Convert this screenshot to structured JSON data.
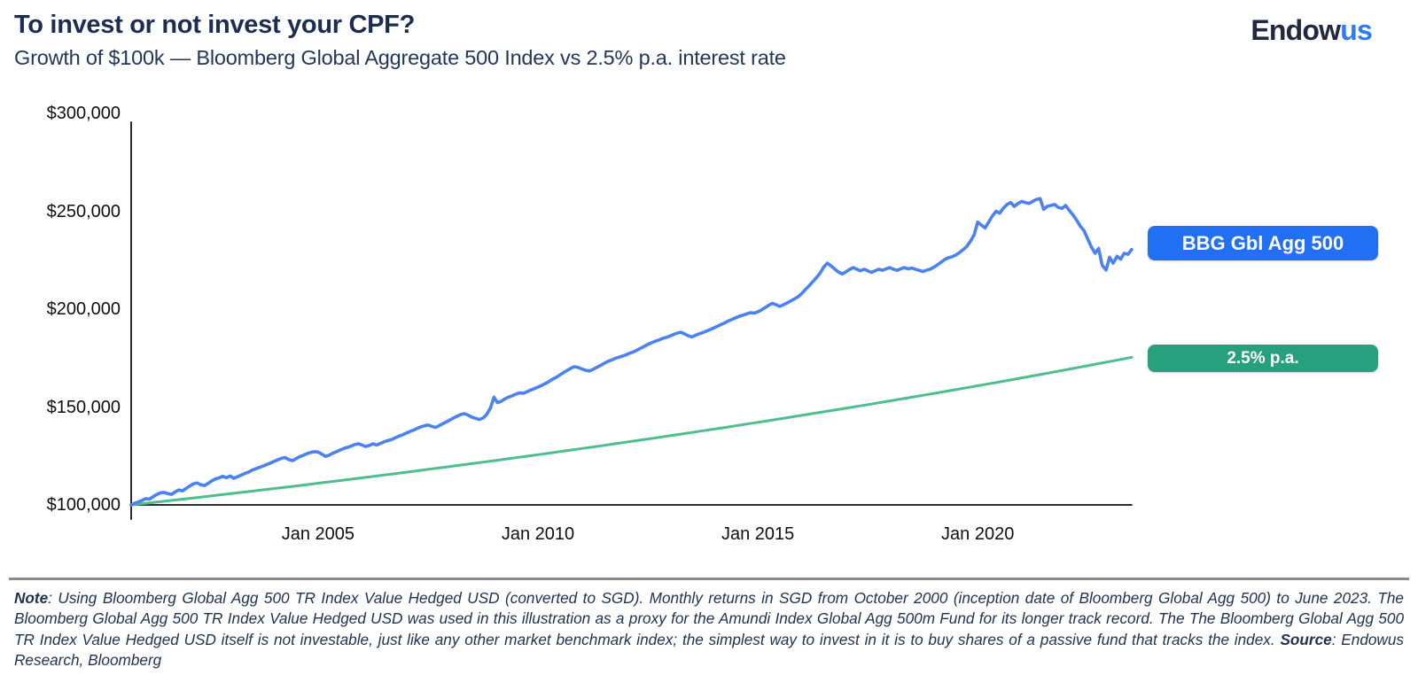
{
  "header": {
    "title": "To invest or not invest your CPF?",
    "subtitle": "Growth of $100k — Bloomberg Global Aggregate 500 Index vs 2.5% p.a. interest rate",
    "logo": {
      "part1": "Endow",
      "part2": "us"
    }
  },
  "chart_data": {
    "type": "line",
    "title": "Growth of $100k — Bloomberg Global Aggregate 500 Index vs 2.5% p.a. interest rate",
    "grid": false,
    "legend_position": "right-of-line-ends",
    "x_axis": {
      "range": [
        2000.75,
        2023.5
      ],
      "start_label": "October 2000",
      "end_label": "June 2023",
      "ticks": [
        {
          "label": "Jan 2005",
          "t": 2005.0
        },
        {
          "label": "Jan 2010",
          "t": 2010.0
        },
        {
          "label": "Jan 2015",
          "t": 2015.0
        },
        {
          "label": "Jan 2020",
          "t": 2020.0
        }
      ]
    },
    "y_axis": {
      "range": [
        100000,
        300000
      ],
      "unit": "SGD",
      "ticks": [
        {
          "label": "$100,000",
          "value": 100000
        },
        {
          "label": "$150,000",
          "value": 150000
        },
        {
          "label": "$200,000",
          "value": 200000
        },
        {
          "label": "$250,000",
          "value": 250000
        },
        {
          "label": "$300,000",
          "value": 300000
        }
      ]
    },
    "series": [
      {
        "name": "BBG Gbl Agg 500",
        "color": "#4a83f1",
        "badge_color": "#2170f3",
        "value_unit": "thousands",
        "points": [
          [
            2000.75,
            100
          ],
          [
            2000.83,
            100.8
          ],
          [
            2000.92,
            101.6
          ],
          [
            2001,
            102.3
          ],
          [
            2001.08,
            103.2
          ],
          [
            2001.17,
            103
          ],
          [
            2001.25,
            104.2
          ],
          [
            2001.33,
            105.3
          ],
          [
            2001.42,
            106.2
          ],
          [
            2001.5,
            106.4
          ],
          [
            2001.58,
            105.8
          ],
          [
            2001.67,
            105.4
          ],
          [
            2001.75,
            106.6
          ],
          [
            2001.83,
            107.6
          ],
          [
            2001.92,
            107.2
          ],
          [
            2002,
            108.4
          ],
          [
            2002.08,
            109.6
          ],
          [
            2002.17,
            110.8
          ],
          [
            2002.25,
            111.2
          ],
          [
            2002.33,
            110.3
          ],
          [
            2002.42,
            109.9
          ],
          [
            2002.5,
            111
          ],
          [
            2002.58,
            112.2
          ],
          [
            2002.67,
            113.3
          ],
          [
            2002.75,
            113.8
          ],
          [
            2002.83,
            114.6
          ],
          [
            2002.92,
            113.9
          ],
          [
            2003,
            114.8
          ],
          [
            2003.08,
            113.6
          ],
          [
            2003.17,
            114.4
          ],
          [
            2003.25,
            115.2
          ],
          [
            2003.33,
            116
          ],
          [
            2003.42,
            116.8
          ],
          [
            2003.5,
            117.8
          ],
          [
            2003.58,
            118.4
          ],
          [
            2003.67,
            119.2
          ],
          [
            2003.75,
            119.8
          ],
          [
            2003.83,
            120.6
          ],
          [
            2003.92,
            121.4
          ],
          [
            2004,
            122.2
          ],
          [
            2004.08,
            123
          ],
          [
            2004.17,
            123.8
          ],
          [
            2004.25,
            124.2
          ],
          [
            2004.33,
            123.2
          ],
          [
            2004.42,
            122.6
          ],
          [
            2004.5,
            123.6
          ],
          [
            2004.58,
            124.6
          ],
          [
            2004.67,
            125.4
          ],
          [
            2004.75,
            126.2
          ],
          [
            2004.83,
            126.8
          ],
          [
            2004.92,
            127.2
          ],
          [
            2005,
            127
          ],
          [
            2005.08,
            126
          ],
          [
            2005.17,
            124.8
          ],
          [
            2005.25,
            125.4
          ],
          [
            2005.33,
            126.4
          ],
          [
            2005.42,
            127.2
          ],
          [
            2005.5,
            128
          ],
          [
            2005.58,
            128.8
          ],
          [
            2005.67,
            129.4
          ],
          [
            2005.75,
            130
          ],
          [
            2005.83,
            130.8
          ],
          [
            2005.92,
            131.2
          ],
          [
            2006,
            130.6
          ],
          [
            2006.08,
            129.8
          ],
          [
            2006.17,
            130.4
          ],
          [
            2006.25,
            131.2
          ],
          [
            2006.33,
            130.6
          ],
          [
            2006.42,
            131.4
          ],
          [
            2006.5,
            132.2
          ],
          [
            2006.58,
            132.8
          ],
          [
            2006.67,
            133.4
          ],
          [
            2006.75,
            134.2
          ],
          [
            2006.83,
            135
          ],
          [
            2006.92,
            135.8
          ],
          [
            2007,
            136.6
          ],
          [
            2007.08,
            137.4
          ],
          [
            2007.17,
            138.2
          ],
          [
            2007.25,
            139
          ],
          [
            2007.33,
            139.8
          ],
          [
            2007.42,
            140.4
          ],
          [
            2007.5,
            140.8
          ],
          [
            2007.58,
            140.2
          ],
          [
            2007.67,
            139.6
          ],
          [
            2007.75,
            140.4
          ],
          [
            2007.83,
            141.4
          ],
          [
            2007.92,
            142.4
          ],
          [
            2008,
            143.4
          ],
          [
            2008.08,
            144.4
          ],
          [
            2008.17,
            145.4
          ],
          [
            2008.25,
            146.2
          ],
          [
            2008.33,
            146.6
          ],
          [
            2008.42,
            145.8
          ],
          [
            2008.5,
            144.8
          ],
          [
            2008.58,
            144.2
          ],
          [
            2008.67,
            143.6
          ],
          [
            2008.75,
            144.4
          ],
          [
            2008.83,
            146
          ],
          [
            2008.92,
            149.5
          ],
          [
            2009,
            155
          ],
          [
            2009.08,
            152.2
          ],
          [
            2009.17,
            153
          ],
          [
            2009.25,
            154.2
          ],
          [
            2009.33,
            155
          ],
          [
            2009.42,
            155.8
          ],
          [
            2009.5,
            156.6
          ],
          [
            2009.58,
            157.2
          ],
          [
            2009.67,
            157
          ],
          [
            2009.75,
            157.8
          ],
          [
            2009.83,
            158.6
          ],
          [
            2009.92,
            159.4
          ],
          [
            2010,
            160.2
          ],
          [
            2010.08,
            161
          ],
          [
            2010.17,
            162
          ],
          [
            2010.25,
            163
          ],
          [
            2010.33,
            164.2
          ],
          [
            2010.42,
            165.2
          ],
          [
            2010.5,
            166.4
          ],
          [
            2010.58,
            167.6
          ],
          [
            2010.67,
            168.8
          ],
          [
            2010.75,
            169.8
          ],
          [
            2010.83,
            170.6
          ],
          [
            2010.92,
            170.2
          ],
          [
            2011,
            169.4
          ],
          [
            2011.08,
            168.8
          ],
          [
            2011.17,
            168.4
          ],
          [
            2011.25,
            169.2
          ],
          [
            2011.33,
            170.2
          ],
          [
            2011.42,
            171.2
          ],
          [
            2011.5,
            172.2
          ],
          [
            2011.58,
            173.2
          ],
          [
            2011.67,
            174
          ],
          [
            2011.75,
            174.8
          ],
          [
            2011.83,
            175.4
          ],
          [
            2011.92,
            176
          ],
          [
            2012,
            176.6
          ],
          [
            2012.08,
            177.4
          ],
          [
            2012.17,
            178.2
          ],
          [
            2012.25,
            179
          ],
          [
            2012.33,
            180
          ],
          [
            2012.42,
            181
          ],
          [
            2012.5,
            182
          ],
          [
            2012.58,
            182.8
          ],
          [
            2012.67,
            183.6
          ],
          [
            2012.75,
            184.2
          ],
          [
            2012.83,
            185
          ],
          [
            2012.92,
            185.6
          ],
          [
            2013,
            186.2
          ],
          [
            2013.08,
            187
          ],
          [
            2013.17,
            187.8
          ],
          [
            2013.25,
            188.2
          ],
          [
            2013.33,
            187.4
          ],
          [
            2013.42,
            186.4
          ],
          [
            2013.5,
            185.8
          ],
          [
            2013.58,
            186.6
          ],
          [
            2013.67,
            187.4
          ],
          [
            2013.75,
            188
          ],
          [
            2013.83,
            188.8
          ],
          [
            2013.92,
            189.6
          ],
          [
            2014,
            190.4
          ],
          [
            2014.08,
            191.2
          ],
          [
            2014.17,
            192.2
          ],
          [
            2014.25,
            193
          ],
          [
            2014.33,
            194
          ],
          [
            2014.42,
            194.8
          ],
          [
            2014.5,
            195.6
          ],
          [
            2014.58,
            196.4
          ],
          [
            2014.67,
            197
          ],
          [
            2014.75,
            197.6
          ],
          [
            2014.83,
            198.2
          ],
          [
            2014.92,
            198
          ],
          [
            2015,
            198.6
          ],
          [
            2015.08,
            199.6
          ],
          [
            2015.17,
            200.8
          ],
          [
            2015.25,
            202
          ],
          [
            2015.33,
            203
          ],
          [
            2015.42,
            202.2
          ],
          [
            2015.5,
            201.4
          ],
          [
            2015.58,
            202.2
          ],
          [
            2015.67,
            203.2
          ],
          [
            2015.75,
            204.2
          ],
          [
            2015.83,
            205.2
          ],
          [
            2015.92,
            206.4
          ],
          [
            2016,
            208
          ],
          [
            2016.08,
            210
          ],
          [
            2016.17,
            212
          ],
          [
            2016.25,
            214
          ],
          [
            2016.33,
            216
          ],
          [
            2016.42,
            218.5
          ],
          [
            2016.5,
            221.5
          ],
          [
            2016.58,
            223.5
          ],
          [
            2016.67,
            222
          ],
          [
            2016.75,
            220.5
          ],
          [
            2016.83,
            219
          ],
          [
            2016.92,
            218
          ],
          [
            2017,
            219
          ],
          [
            2017.08,
            220.2
          ],
          [
            2017.17,
            221.2
          ],
          [
            2017.25,
            220.4
          ],
          [
            2017.33,
            219.6
          ],
          [
            2017.42,
            220.4
          ],
          [
            2017.5,
            219.6
          ],
          [
            2017.58,
            218.8
          ],
          [
            2017.67,
            219.6
          ],
          [
            2017.75,
            220.4
          ],
          [
            2017.83,
            219.8
          ],
          [
            2017.92,
            220.6
          ],
          [
            2018,
            221.2
          ],
          [
            2018.08,
            220.4
          ],
          [
            2018.17,
            219.8
          ],
          [
            2018.25,
            220.6
          ],
          [
            2018.33,
            221.2
          ],
          [
            2018.42,
            220.6
          ],
          [
            2018.5,
            221
          ],
          [
            2018.58,
            220.4
          ],
          [
            2018.67,
            219.8
          ],
          [
            2018.75,
            219.2
          ],
          [
            2018.83,
            219.8
          ],
          [
            2018.92,
            220.4
          ],
          [
            2019,
            221.4
          ],
          [
            2019.08,
            222.6
          ],
          [
            2019.17,
            224
          ],
          [
            2019.25,
            225.4
          ],
          [
            2019.33,
            226.2
          ],
          [
            2019.42,
            226.8
          ],
          [
            2019.5,
            227.6
          ],
          [
            2019.58,
            228.8
          ],
          [
            2019.67,
            230.4
          ],
          [
            2019.75,
            232
          ],
          [
            2019.83,
            234.5
          ],
          [
            2019.92,
            238
          ],
          [
            2020,
            244.5
          ],
          [
            2020.08,
            243
          ],
          [
            2020.17,
            241.5
          ],
          [
            2020.25,
            244.5
          ],
          [
            2020.33,
            247.5
          ],
          [
            2020.42,
            250
          ],
          [
            2020.5,
            249
          ],
          [
            2020.58,
            251.5
          ],
          [
            2020.67,
            253.5
          ],
          [
            2020.75,
            254.5
          ],
          [
            2020.83,
            252.5
          ],
          [
            2020.92,
            254
          ],
          [
            2021,
            255
          ],
          [
            2021.08,
            254.5
          ],
          [
            2021.17,
            254
          ],
          [
            2021.25,
            255
          ],
          [
            2021.33,
            256
          ],
          [
            2021.42,
            256.5
          ],
          [
            2021.5,
            251
          ],
          [
            2021.58,
            252.5
          ],
          [
            2021.67,
            253
          ],
          [
            2021.75,
            253.5
          ],
          [
            2021.83,
            252
          ],
          [
            2021.92,
            251.5
          ],
          [
            2022,
            253
          ],
          [
            2022.08,
            250.5
          ],
          [
            2022.17,
            248
          ],
          [
            2022.25,
            245.5
          ],
          [
            2022.33,
            242.5
          ],
          [
            2022.42,
            240
          ],
          [
            2022.5,
            236
          ],
          [
            2022.58,
            232
          ],
          [
            2022.67,
            228.5
          ],
          [
            2022.75,
            231
          ],
          [
            2022.83,
            222.5
          ],
          [
            2022.92,
            220
          ],
          [
            2023,
            226.5
          ],
          [
            2023.08,
            223.5
          ],
          [
            2023.17,
            227
          ],
          [
            2023.25,
            225.5
          ],
          [
            2023.33,
            228.5
          ],
          [
            2023.42,
            228
          ],
          [
            2023.5,
            230.5
          ]
        ]
      },
      {
        "name": "2.5% p.a.",
        "color": "#4cbf8d",
        "badge_color": "#27a07d",
        "kind": "compound",
        "start_value_k": 100,
        "annual_rate": 0.025
      }
    ]
  },
  "footer": {
    "note_label": "Note",
    "note_text": ": Using Bloomberg Global Agg 500 TR Index Value Hedged USD (converted to SGD). Monthly returns in SGD from October 2000 (inception date of Bloomberg Global Agg 500) to June 2023. The Bloomberg Global Agg 500 TR Index Value Hedged USD was used in this illustration as a proxy for the Amundi Index Global Agg 500m Fund for its longer track record. The The Bloomberg Global Agg 500 TR Index Value Hedged USD itself is not investable, just like any other market benchmark index; the simplest way to invest in it is to buy shares of a passive fund that tracks the index. ",
    "source_label": "Source",
    "source_text": ": Endowus Research, Bloomberg"
  }
}
